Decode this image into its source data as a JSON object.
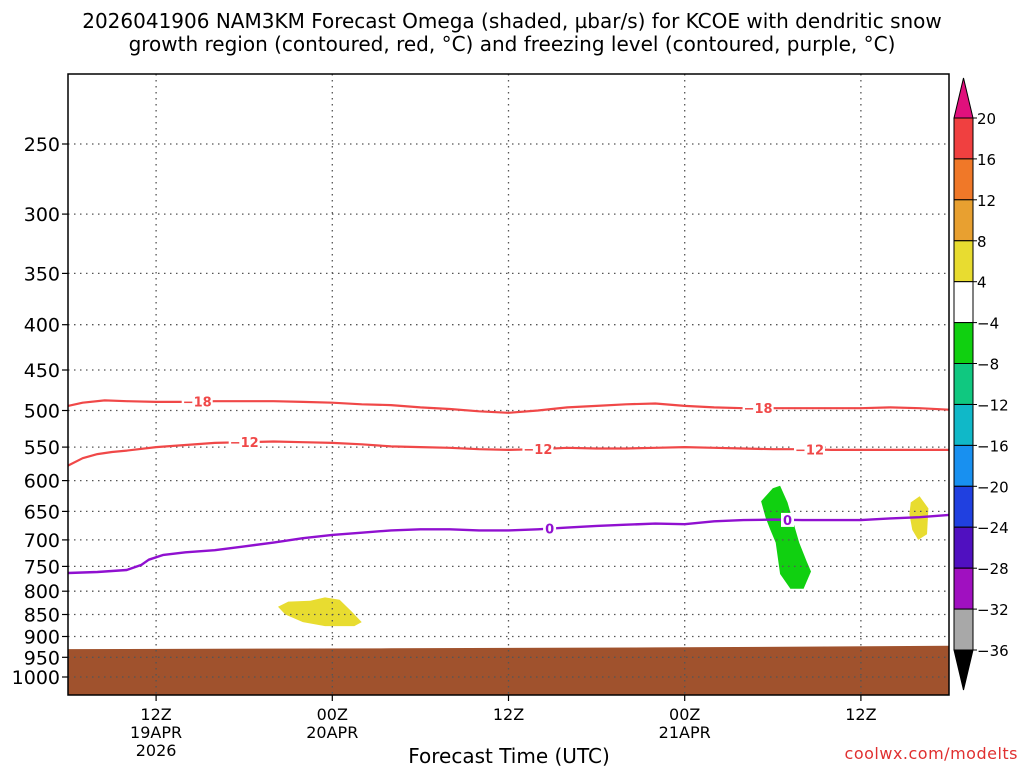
{
  "title_line1": "2026041906 NAM3KM Forecast Omega (shaded, µbar/s) for KCOE with dendritic snow",
  "title_line2": "growth region (contoured, red, °C) and freezing level (contoured, purple, °C)",
  "credit": "coolwx.com/modelts",
  "chart_data": {
    "type": "time-height cross section",
    "title": "2026041906 NAM3KM Forecast Omega (shaded, µbar/s) for KCOE with dendritic snow growth region (contoured, red, °C) and freezing level (contoured, purple, °C)",
    "xlabel": "Forecast Time (UTC)",
    "ylabel": "",
    "x_range_hours": [
      6,
      66
    ],
    "y_axis_pressure_mb": {
      "log_scale": true,
      "top": 200,
      "bottom": 1050
    },
    "y_ticks": [
      250,
      300,
      350,
      400,
      450,
      500,
      550,
      600,
      650,
      700,
      750,
      800,
      850,
      900,
      950,
      1000
    ],
    "x_ticks": [
      {
        "hour": 12,
        "label": "12Z",
        "sub1": "19APR",
        "sub2": "2026"
      },
      {
        "hour": 24,
        "label": "00Z",
        "sub1": "20APR",
        "sub2": ""
      },
      {
        "hour": 36,
        "label": "12Z",
        "sub1": "",
        "sub2": ""
      },
      {
        "hour": 48,
        "label": "00Z",
        "sub1": "21APR",
        "sub2": ""
      },
      {
        "hour": 60,
        "label": "12Z",
        "sub1": "",
        "sub2": ""
      }
    ],
    "grid": true,
    "colorbar": {
      "position": "right",
      "labels": [
        "20",
        "16",
        "12",
        "8",
        "4",
        "−4",
        "−8",
        "−12",
        "−16",
        "−20",
        "−24",
        "−28",
        "−32",
        "−36"
      ],
      "max_triangle_color": "#e0107c",
      "min_triangle_color": "#000000",
      "bins": [
        {
          "range": [
            16,
            20
          ],
          "color": "#f04040"
        },
        {
          "range": [
            12,
            16
          ],
          "color": "#f07828"
        },
        {
          "range": [
            8,
            12
          ],
          "color": "#e8a030"
        },
        {
          "range": [
            4,
            8
          ],
          "color": "#e8dc30"
        },
        {
          "range": [
            -4,
            4
          ],
          "color": "#ffffff"
        },
        {
          "range": [
            -8,
            -4
          ],
          "color": "#10d010"
        },
        {
          "range": [
            -12,
            -8
          ],
          "color": "#10c880"
        },
        {
          "range": [
            -16,
            -12
          ],
          "color": "#10b8c8"
        },
        {
          "range": [
            -20,
            -16
          ],
          "color": "#1890f0"
        },
        {
          "range": [
            -24,
            -20
          ],
          "color": "#2040e0"
        },
        {
          "range": [
            -28,
            -24
          ],
          "color": "#5010c0"
        },
        {
          "range": [
            -32,
            -28
          ],
          "color": "#a010c0"
        },
        {
          "range": [
            -36,
            -32
          ],
          "color": "#a8a8a8"
        }
      ]
    },
    "terrain_color": "#a0522d",
    "terrain_top_mb": [
      [
        6,
        930
      ],
      [
        28,
        928
      ],
      [
        46,
        926
      ],
      [
        66,
        922
      ]
    ],
    "series": [
      {
        "name": "-18",
        "label": "−18",
        "color": "#f04848",
        "label_at_hours": [
          14.8,
          53
        ],
        "points": [
          [
            6,
            494
          ],
          [
            7,
            490
          ],
          [
            8.5,
            487
          ],
          [
            10,
            488
          ],
          [
            12,
            489
          ],
          [
            14,
            489
          ],
          [
            16,
            488
          ],
          [
            18,
            488
          ],
          [
            20,
            488
          ],
          [
            22,
            489
          ],
          [
            24,
            490
          ],
          [
            26,
            492
          ],
          [
            28,
            493
          ],
          [
            30,
            496
          ],
          [
            32,
            498
          ],
          [
            34,
            501
          ],
          [
            36,
            503
          ],
          [
            38,
            500
          ],
          [
            40,
            496
          ],
          [
            42,
            494
          ],
          [
            44,
            492
          ],
          [
            46,
            491
          ],
          [
            48,
            494
          ],
          [
            50,
            496
          ],
          [
            52,
            497
          ],
          [
            54,
            497
          ],
          [
            56,
            497
          ],
          [
            58,
            497
          ],
          [
            60,
            497
          ],
          [
            62,
            496
          ],
          [
            64,
            497
          ],
          [
            66,
            499
          ]
        ]
      },
      {
        "name": "-12",
        "label": "−12",
        "color": "#f04848",
        "label_at_hours": [
          18,
          38,
          56.5
        ],
        "points": [
          [
            6,
            577
          ],
          [
            7,
            566
          ],
          [
            8,
            560
          ],
          [
            9,
            557
          ],
          [
            10,
            555
          ],
          [
            12,
            550
          ],
          [
            14,
            547
          ],
          [
            16,
            544
          ],
          [
            18,
            543
          ],
          [
            20,
            542
          ],
          [
            22,
            543
          ],
          [
            24,
            544
          ],
          [
            26,
            546
          ],
          [
            28,
            549
          ],
          [
            30,
            550
          ],
          [
            32,
            551
          ],
          [
            34,
            553
          ],
          [
            36,
            554
          ],
          [
            38,
            553
          ],
          [
            40,
            551
          ],
          [
            42,
            552
          ],
          [
            44,
            552
          ],
          [
            46,
            551
          ],
          [
            48,
            550
          ],
          [
            50,
            551
          ],
          [
            52,
            552
          ],
          [
            54,
            553
          ],
          [
            56,
            553
          ],
          [
            58,
            554
          ],
          [
            60,
            554
          ],
          [
            62,
            554
          ],
          [
            64,
            554
          ],
          [
            66,
            554
          ]
        ]
      },
      {
        "name": "0",
        "label": "0",
        "color": "#9010d0",
        "label_at_hours": [
          38.8,
          55
        ],
        "points": [
          [
            6,
            763
          ],
          [
            8,
            761
          ],
          [
            10,
            757
          ],
          [
            11,
            747
          ],
          [
            11.5,
            737
          ],
          [
            12.5,
            728
          ],
          [
            14,
            723
          ],
          [
            16,
            719
          ],
          [
            18,
            712
          ],
          [
            20,
            705
          ],
          [
            22,
            697
          ],
          [
            24,
            691
          ],
          [
            26,
            687
          ],
          [
            28,
            683
          ],
          [
            30,
            681
          ],
          [
            32,
            681
          ],
          [
            34,
            683
          ],
          [
            36,
            683
          ],
          [
            38,
            681
          ],
          [
            40,
            678
          ],
          [
            42,
            675
          ],
          [
            44,
            673
          ],
          [
            46,
            671
          ],
          [
            48,
            672
          ],
          [
            50,
            667
          ],
          [
            52,
            665
          ],
          [
            54,
            664
          ],
          [
            56,
            665
          ],
          [
            58,
            665
          ],
          [
            60,
            665
          ],
          [
            62,
            662
          ],
          [
            64,
            660
          ],
          [
            66,
            656
          ]
        ]
      }
    ],
    "shaded_regions": [
      {
        "color": "#e8dc30",
        "value_bin": [
          4,
          8
        ],
        "outline": [
          [
            20.3,
            833
          ],
          [
            21,
            822
          ],
          [
            22.5,
            820
          ],
          [
            23.5,
            813
          ],
          [
            24.5,
            818
          ],
          [
            25.3,
            843
          ],
          [
            26,
            867
          ],
          [
            25.5,
            876
          ],
          [
            23.5,
            876
          ],
          [
            22,
            867
          ],
          [
            20.8,
            850
          ]
        ]
      },
      {
        "color": "#10d010",
        "value_bin": [
          -8,
          -4
        ],
        "outline": [
          [
            53.2,
            633
          ],
          [
            54,
            612
          ],
          [
            54.5,
            608
          ],
          [
            55,
            635
          ],
          [
            55.8,
            705
          ],
          [
            56.3,
            740
          ],
          [
            56.6,
            760
          ],
          [
            56.1,
            795
          ],
          [
            55.2,
            795
          ],
          [
            54.5,
            765
          ],
          [
            54.2,
            705
          ],
          [
            53.8,
            680
          ],
          [
            53.5,
            660
          ]
        ]
      },
      {
        "color": "#e8dc30",
        "value_bin": [
          4,
          8
        ],
        "outline": [
          [
            63.4,
            635
          ],
          [
            64,
            625
          ],
          [
            64.6,
            645
          ],
          [
            64.5,
            690
          ],
          [
            63.9,
            700
          ],
          [
            63.5,
            682
          ],
          [
            63.3,
            655
          ]
        ]
      }
    ]
  }
}
